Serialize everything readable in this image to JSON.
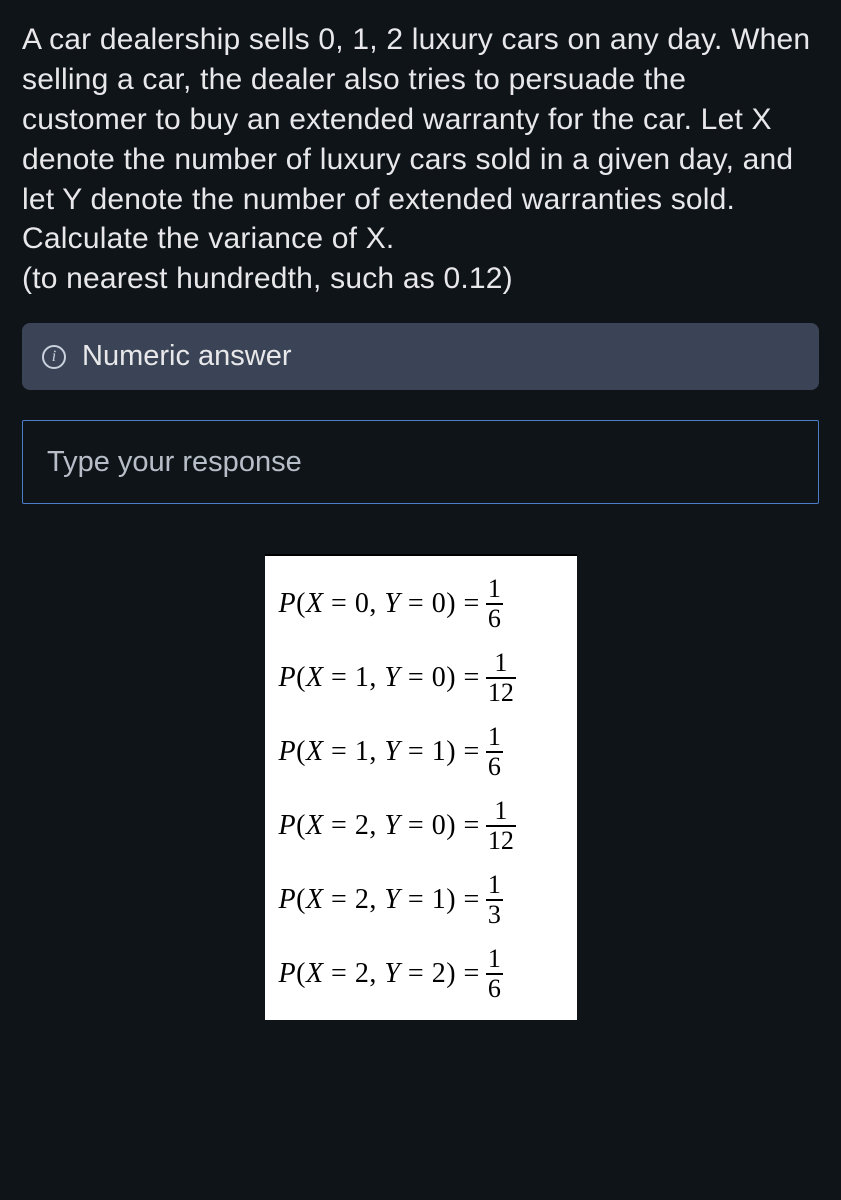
{
  "question": {
    "body": "A car dealership sells 0, 1, 2 luxury cars on any day. When selling a car, the dealer also tries to persuade the customer to buy an extended warranty for the car.  Let X denote the number of luxury cars sold in a given day, and let Y denote the number of extended warranties sold.",
    "prompt": "Calculate the variance of X.",
    "hint": "(to nearest hundredth, such as 0.12)"
  },
  "answer_type_label": "Numeric answer",
  "input_placeholder": "Type your response",
  "probabilities": {
    "background_color": "#ffffff",
    "text_color": "#000000",
    "font_family": "Cambria Math, Times New Roman, serif",
    "rows": [
      {
        "x": 0,
        "y": 0,
        "num": 1,
        "den": 6
      },
      {
        "x": 1,
        "y": 0,
        "num": 1,
        "den": 12
      },
      {
        "x": 1,
        "y": 1,
        "num": 1,
        "den": 6
      },
      {
        "x": 2,
        "y": 0,
        "num": 1,
        "den": 12
      },
      {
        "x": 2,
        "y": 1,
        "num": 1,
        "den": 3
      },
      {
        "x": 2,
        "y": 2,
        "num": 1,
        "den": 6
      }
    ]
  },
  "colors": {
    "page_background": "#0f1419",
    "text": "#e8e8ea",
    "pill_background": "#3a4456",
    "input_border": "#4c7dc9",
    "placeholder": "#b8bec8"
  }
}
